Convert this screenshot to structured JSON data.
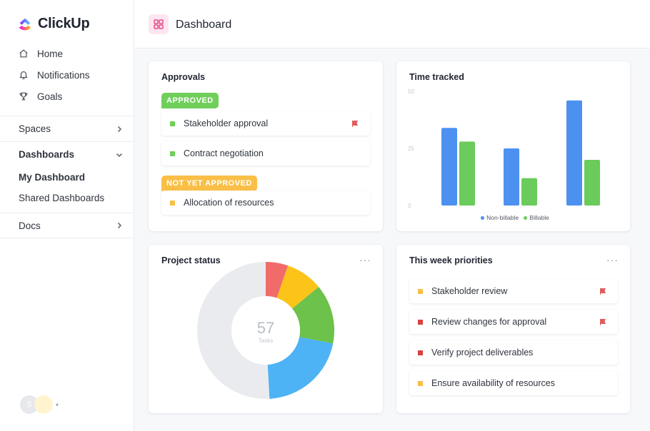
{
  "app": {
    "name": "ClickUp"
  },
  "sidebar": {
    "items": [
      {
        "label": "Home",
        "icon": "home-icon"
      },
      {
        "label": "Notifications",
        "icon": "bell-icon"
      },
      {
        "label": "Goals",
        "icon": "trophy-icon"
      }
    ],
    "spaces": "Spaces",
    "dashboards": "Dashboards",
    "dashboard_items": [
      "My Dashboard",
      "Shared Dashboards"
    ],
    "docs": "Docs",
    "avatar_initial": "S"
  },
  "header": {
    "title": "Dashboard"
  },
  "approvals": {
    "title": "Approvals",
    "approved_label": "APPROVED",
    "not_approved_label": "NOT YET APPROVED",
    "approved_tasks": [
      "Stakeholder approval",
      "Contract negotiation"
    ],
    "pending_tasks": [
      "Allocation of resources"
    ]
  },
  "time_tracked": {
    "title": "Time tracked",
    "legend": [
      "Non-billable",
      "Billable"
    ]
  },
  "project_status": {
    "title": "Project status",
    "center_value": "57",
    "center_label": "Tasks"
  },
  "priorities": {
    "title": "This week priorities",
    "tasks": [
      "Stakeholder review",
      "Review changes for approval",
      "Verify project deliverables",
      "Ensure availability of resources"
    ]
  },
  "colors": {
    "approved": "#6fcf5a",
    "not_approved": "#f9bf47",
    "flag_red": "#e25c5c",
    "blue": "#4c91f0",
    "green": "#6bcb5b",
    "pink": "#e74d8b",
    "donut_red": "#f26b6b",
    "donut_yellow": "#fcc419",
    "donut_green": "#6cc24a",
    "donut_blue": "#4db3f5",
    "donut_gray": "#e9ebee"
  },
  "chart_data": [
    {
      "type": "bar",
      "title": "Time tracked",
      "y_ticks": [
        "50",
        "25",
        "0"
      ],
      "ylim": [
        0,
        50
      ],
      "categories": [
        "",
        "",
        ""
      ],
      "series": [
        {
          "name": "Non-billable",
          "values": [
            34,
            25,
            46
          ]
        },
        {
          "name": "Billable",
          "values": [
            28,
            12,
            20
          ]
        }
      ],
      "legend": "bottom"
    },
    {
      "type": "pie",
      "title": "Project status",
      "total": 57,
      "slices": [
        {
          "value": 3,
          "color": "#f26b6b"
        },
        {
          "value": 5,
          "color": "#fcc419"
        },
        {
          "value": 8,
          "color": "#6cc24a"
        },
        {
          "value": 12,
          "color": "#4db3f5"
        },
        {
          "value": 29,
          "color": "#e9ebee"
        }
      ]
    }
  ]
}
